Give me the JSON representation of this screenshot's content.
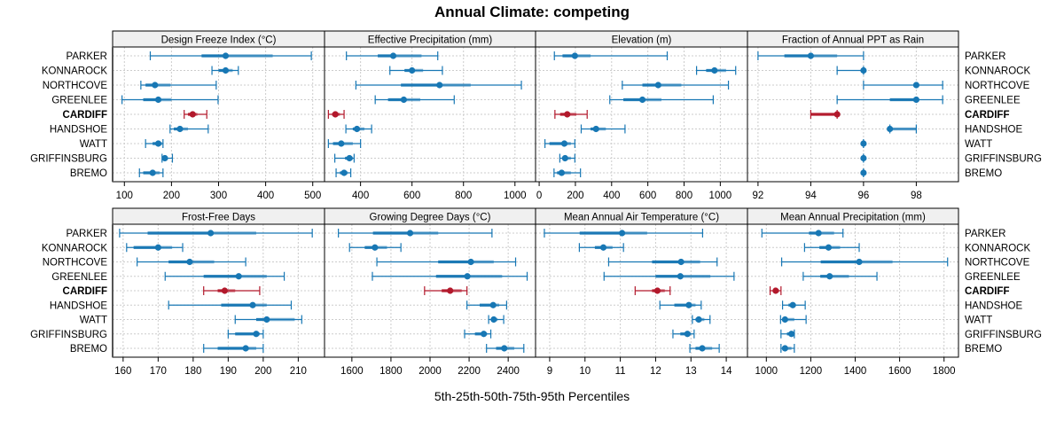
{
  "chart_data": {
    "type": "dot-interval",
    "title": "Annual Climate: competing",
    "xlabel": "5th-25th-50th-75th-95th Percentiles",
    "highlight_site": "CARDIFF",
    "colors": {
      "normal": "#1777b4",
      "highlight": "#b2182b"
    },
    "grid": true,
    "sites": [
      "PARKER",
      "KONNAROCK",
      "NORTHCOVE",
      "GREENLEE",
      "CARDIFF",
      "HANDSHOE",
      "WATT",
      "GRIFFINSBURG",
      "BREMO"
    ],
    "percentile_keys": [
      "p5",
      "p25",
      "p50",
      "p75",
      "p95"
    ],
    "panels": [
      {
        "title": "Design Freeze Index (°C)",
        "xlim": [
          75,
          525
        ],
        "ticks": [
          100,
          200,
          300,
          400,
          500
        ],
        "values": [
          [
            155,
            264,
            315,
            415,
            497
          ],
          [
            286,
            300,
            315,
            330,
            342
          ],
          [
            135,
            145,
            165,
            198,
            295
          ],
          [
            95,
            140,
            172,
            200,
            299
          ],
          [
            227,
            235,
            245,
            255,
            275
          ],
          [
            197,
            205,
            218,
            235,
            278
          ],
          [
            145,
            160,
            172,
            180,
            182
          ],
          [
            180,
            183,
            186,
            192,
            202
          ],
          [
            132,
            140,
            160,
            175,
            182
          ]
        ]
      },
      {
        "title": "Effective Precipitation (mm)",
        "xlim": [
          260,
          1080
        ],
        "ticks": [
          400,
          600,
          800,
          1000
        ],
        "values": [
          [
            345,
            467,
            527,
            637,
            700
          ],
          [
            514,
            571,
            600,
            643,
            718
          ],
          [
            382,
            557,
            707,
            828,
            1025
          ],
          [
            457,
            507,
            568,
            632,
            764
          ],
          [
            275,
            290,
            302,
            320,
            336
          ],
          [
            343,
            370,
            386,
            415,
            443
          ],
          [
            275,
            293,
            325,
            370,
            400
          ],
          [
            300,
            340,
            357,
            370,
            375
          ],
          [
            305,
            320,
            336,
            350,
            362
          ]
        ]
      },
      {
        "title": "Elevation (m)",
        "xlim": [
          -20,
          1150
        ],
        "ticks": [
          0,
          200,
          400,
          600,
          800,
          1000
        ],
        "values": [
          [
            84,
            129,
            197,
            284,
            707
          ],
          [
            869,
            922,
            968,
            1032,
            1085
          ],
          [
            459,
            570,
            657,
            785,
            1045
          ],
          [
            390,
            465,
            570,
            675,
            961
          ],
          [
            87,
            116,
            155,
            205,
            265
          ],
          [
            232,
            284,
            314,
            368,
            474
          ],
          [
            32,
            57,
            139,
            175,
            197
          ],
          [
            114,
            129,
            143,
            175,
            197
          ],
          [
            82,
            99,
            124,
            175,
            228
          ]
        ]
      },
      {
        "title": "Fraction of Annual PPT as Rain",
        "xlim": [
          91.6,
          99.6
        ],
        "ticks": [
          92,
          94,
          96,
          98
        ],
        "values": [
          [
            92,
            93,
            94,
            95,
            96
          ],
          [
            95,
            96,
            96,
            96,
            96
          ],
          [
            96,
            98,
            98,
            98,
            99
          ],
          [
            95,
            97,
            98,
            98,
            99
          ],
          [
            94,
            94,
            95,
            95,
            95
          ],
          [
            97,
            97,
            97,
            98,
            98
          ],
          [
            96,
            96,
            96,
            96,
            96
          ],
          [
            96,
            96,
            96,
            96,
            96
          ],
          [
            96,
            96,
            96,
            96,
            96
          ]
        ]
      },
      {
        "title": "Frost-Free Days",
        "xlim": [
          157,
          217.5
        ],
        "ticks": [
          160,
          170,
          180,
          190,
          200,
          210
        ],
        "values": [
          [
            159,
            167,
            185,
            198,
            214
          ],
          [
            161,
            163,
            170,
            174,
            177
          ],
          [
            164,
            173,
            179,
            186,
            195
          ],
          [
            172,
            183,
            193,
            201,
            206
          ],
          [
            183,
            187,
            189,
            192,
            199
          ],
          [
            173,
            188,
            197,
            201,
            208
          ],
          [
            192,
            198,
            201,
            209,
            211
          ],
          [
            190,
            192,
            198,
            199,
            200
          ],
          [
            183,
            187,
            195,
            198,
            200
          ]
        ]
      },
      {
        "title": "Growing Degree Days (°C)",
        "xlim": [
          1460,
          2540
        ],
        "ticks": [
          1600,
          1800,
          2000,
          2200,
          2400
        ],
        "values": [
          [
            1531,
            1708,
            1898,
            2042,
            2317
          ],
          [
            1588,
            1666,
            1718,
            1780,
            1851
          ],
          [
            1728,
            2042,
            2209,
            2326,
            2438
          ],
          [
            1705,
            2031,
            2191,
            2369,
            2497
          ],
          [
            1972,
            2060,
            2103,
            2162,
            2189
          ],
          [
            2189,
            2254,
            2323,
            2354,
            2392
          ],
          [
            2300,
            2315,
            2326,
            2346,
            2377
          ],
          [
            2177,
            2230,
            2275,
            2292,
            2311
          ],
          [
            2289,
            2338,
            2380,
            2431,
            2480
          ]
        ]
      },
      {
        "title": "Mean Annual Air Temperature (°C)",
        "xlim": [
          8.6,
          14.6
        ],
        "ticks": [
          9,
          10,
          11,
          12,
          13,
          14
        ],
        "values": [
          [
            8.85,
            9.85,
            11.05,
            11.76,
            13.33
          ],
          [
            9.84,
            10.28,
            10.52,
            10.78,
            11.09
          ],
          [
            10.67,
            11.9,
            12.72,
            13.26,
            13.74
          ],
          [
            10.54,
            12.0,
            12.7,
            13.55,
            14.22
          ],
          [
            11.42,
            11.9,
            12.05,
            12.26,
            12.41
          ],
          [
            12.12,
            12.53,
            12.94,
            13.13,
            13.29
          ],
          [
            13.04,
            13.13,
            13.22,
            13.38,
            13.54
          ],
          [
            12.49,
            12.7,
            12.9,
            13.0,
            13.09
          ],
          [
            12.97,
            13.13,
            13.32,
            13.6,
            13.8
          ]
        ]
      },
      {
        "title": "Mean Annual Precipitation (mm)",
        "xlim": [
          915,
          1865
        ],
        "ticks": [
          1000,
          1200,
          1400,
          1600,
          1800
        ],
        "values": [
          [
            980,
            1192,
            1235,
            1305,
            1345
          ],
          [
            1172,
            1239,
            1280,
            1332,
            1418
          ],
          [
            1069,
            1245,
            1418,
            1568,
            1816
          ],
          [
            1166,
            1243,
            1285,
            1372,
            1498
          ],
          [
            1017,
            1033,
            1042,
            1057,
            1066
          ],
          [
            1073,
            1100,
            1119,
            1133,
            1175
          ],
          [
            1064,
            1073,
            1084,
            1126,
            1179
          ],
          [
            1066,
            1093,
            1113,
            1119,
            1126
          ],
          [
            1066,
            1073,
            1084,
            1113,
            1126
          ]
        ]
      }
    ]
  }
}
